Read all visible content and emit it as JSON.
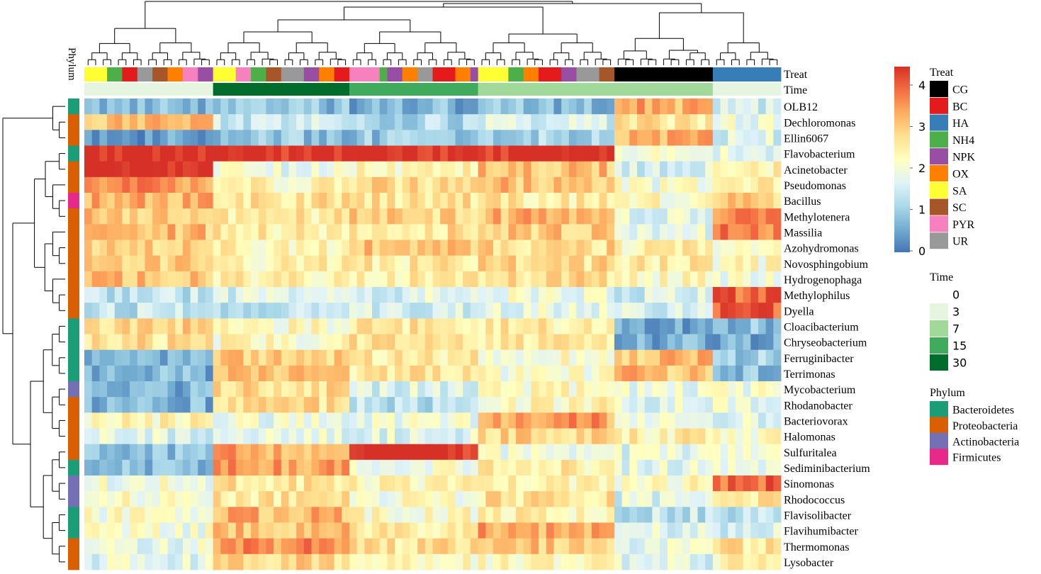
{
  "chart_data": {
    "type": "heatmap",
    "rows": [
      "OLB12",
      "Dechloromonas",
      "Ellin6067",
      "Flavobacterium",
      "Acinetobacter",
      "Pseudomonas",
      "Bacillus",
      "Methylotenera",
      "Massilia",
      "Azohydromonas",
      "Novosphingobium",
      "Hydrogenophaga",
      "Methylophilus",
      "Dyella",
      "Cloacibacterium",
      "Chryseobacterium",
      "Ferruginibacter",
      "Terrimonas",
      "Mycobacterium",
      "Rhodanobacter",
      "Bacteriovorax",
      "Halomonas",
      "Sulfuritalea",
      "Sediminibacterium",
      "Sinomonas",
      "Rhodococcus",
      "Flavisolibacter",
      "Flavihumibacter",
      "Thermomonas",
      "Lysobacter"
    ],
    "row_phylum": [
      "Bacteroidetes",
      "Proteobacteria",
      "Proteobacteria",
      "Bacteroidetes",
      "Proteobacteria",
      "Proteobacteria",
      "Firmicutes",
      "Proteobacteria",
      "Proteobacteria",
      "Proteobacteria",
      "Proteobacteria",
      "Proteobacteria",
      "Proteobacteria",
      "Proteobacteria",
      "Bacteroidetes",
      "Bacteroidetes",
      "Bacteroidetes",
      "Bacteroidetes",
      "Actinobacteria",
      "Proteobacteria",
      "Proteobacteria",
      "Proteobacteria",
      "Proteobacteria",
      "Bacteroidetes",
      "Actinobacteria",
      "Actinobacteria",
      "Bacteroidetes",
      "Bacteroidetes",
      "Proteobacteria",
      "Proteobacteria"
    ],
    "column_groups": [
      {
        "start": 0,
        "end": 17,
        "time": 3,
        "treats": [
          "SA",
          "SA",
          "NH4",
          "NH4",
          "BC",
          "BC",
          "UR",
          "UR",
          "SC",
          "SC",
          "OX",
          "OX",
          "PYR",
          "PYR",
          "NPK",
          "NPK"
        ],
        "base": [
          0.6,
          2.8,
          0.4,
          4.2,
          4.2,
          3.2,
          2.9,
          2.8,
          2.8,
          2.6,
          2.7,
          2.8,
          1.2,
          1.2,
          2.6,
          2.4,
          0.6,
          0.6,
          0.6,
          0.6,
          2.1,
          1.5,
          0.8,
          0.7,
          1.8,
          1.9,
          1.9,
          1.8,
          1.7,
          1.6
        ]
      },
      {
        "start": 17,
        "end": 35,
        "time": 30,
        "treats": [
          "SA",
          "SA",
          "PYR",
          "PYR",
          "NH4",
          "NH4",
          "SC",
          "SC",
          "UR",
          "UR",
          "NPK",
          "NPK",
          "OX",
          "OX",
          "BC",
          "BC"
        ],
        "base": [
          0.7,
          1.3,
          0.8,
          4.1,
          1.7,
          2.1,
          2.4,
          2.3,
          2.3,
          2.2,
          2.2,
          2.2,
          1.5,
          1.3,
          2.0,
          2.0,
          2.7,
          2.8,
          2.5,
          2.5,
          1.7,
          1.6,
          3.0,
          3.1,
          2.4,
          2.4,
          2.9,
          2.8,
          3.2,
          2.6
        ]
      },
      {
        "start": 35,
        "end": 52,
        "time": 15,
        "treats": [
          "PYR",
          "PYR",
          "PYR",
          "NH4",
          "NPK",
          "OX",
          "OX",
          "UR",
          "UR",
          "BC",
          "BC",
          "OX",
          "OX",
          "NPK"
        ],
        "base": [
          0.6,
          1.1,
          0.8,
          4.1,
          2.1,
          2.5,
          2.4,
          2.6,
          2.4,
          2.8,
          2.3,
          2.3,
          1.5,
          1.4,
          2.3,
          2.5,
          2.3,
          2.3,
          1.5,
          1.2,
          1.7,
          1.6,
          4.0,
          1.9,
          2.1,
          1.9,
          2.0,
          2.2,
          2.4,
          2.1
        ]
      },
      {
        "start": 52,
        "end": 70,
        "time": 7,
        "treats": [
          "SA",
          "SA",
          "SA",
          "NH4",
          "OX",
          "OX",
          "BC",
          "BC",
          "NPK",
          "NPK",
          "UR",
          "UR",
          "SC",
          "SC"
        ],
        "base": [
          0.7,
          1.4,
          1.0,
          4.0,
          2.8,
          2.8,
          2.3,
          2.9,
          2.7,
          2.5,
          2.5,
          2.5,
          1.8,
          1.7,
          2.3,
          2.3,
          1.9,
          1.9,
          2.0,
          2.1,
          3.1,
          2.6,
          1.8,
          2.2,
          2.1,
          2.4,
          2.2,
          3.0,
          2.7,
          2.1
        ]
      },
      {
        "start": 70,
        "end": 83,
        "time": 7,
        "treats": [
          "CG",
          "CG",
          "CG",
          "CG",
          "CG",
          "CG",
          "CG",
          "CG",
          "CG",
          "CG",
          "CG",
          "CG",
          "CG"
        ],
        "base": [
          3.0,
          2.4,
          2.9,
          1.9,
          1.4,
          1.8,
          2.0,
          1.6,
          1.6,
          2.2,
          2.3,
          2.1,
          1.4,
          1.4,
          0.4,
          0.5,
          2.8,
          2.8,
          1.7,
          1.6,
          1.6,
          2.2,
          1.6,
          1.6,
          2.0,
          1.5,
          1.2,
          1.5,
          1.6,
          1.5
        ]
      },
      {
        "start": 83,
        "end": 92,
        "time": 3,
        "treats": [
          "HA",
          "HA",
          "HA",
          "HA",
          "HA",
          "HA",
          "HA",
          "HA",
          "HA"
        ],
        "base": [
          1.3,
          1.7,
          1.5,
          1.7,
          2.1,
          2.4,
          2.6,
          3.2,
          3.4,
          1.9,
          2.0,
          1.8,
          3.5,
          3.6,
          0.7,
          0.5,
          0.9,
          0.7,
          1.8,
          1.7,
          1.6,
          1.9,
          1.7,
          1.6,
          3.5,
          2.3,
          1.2,
          1.4,
          2.4,
          2.1
        ]
      }
    ],
    "color_scale": {
      "min": 0,
      "max": 4,
      "ticks": [
        0,
        1,
        2,
        3,
        4
      ],
      "colors": [
        "#4575b4",
        "#74add1",
        "#abd9e9",
        "#e0f3f8",
        "#ffffbf",
        "#fee090",
        "#fdae61",
        "#f46d43",
        "#d73027"
      ]
    },
    "legend_treat": {
      "title": "Treat",
      "items": [
        {
          "label": "CG",
          "color": "#000000"
        },
        {
          "label": "BC",
          "color": "#e41a1c"
        },
        {
          "label": "HA",
          "color": "#377eb8"
        },
        {
          "label": "NH4",
          "color": "#4daf4a"
        },
        {
          "label": "NPK",
          "color": "#984ea3"
        },
        {
          "label": "OX",
          "color": "#ff7f00"
        },
        {
          "label": "SA",
          "color": "#ffff33"
        },
        {
          "label": "SC",
          "color": "#a65628"
        },
        {
          "label": "PYR",
          "color": "#f781bf"
        },
        {
          "label": "UR",
          "color": "#999999"
        }
      ]
    },
    "legend_time": {
      "title": "Time",
      "items": [
        {
          "label": "0",
          "color": "#ffffff"
        },
        {
          "label": "3",
          "color": "#e5f5e0"
        },
        {
          "label": "7",
          "color": "#a1d99b"
        },
        {
          "label": "15",
          "color": "#41ab5d"
        },
        {
          "label": "30",
          "color": "#006d2c"
        }
      ]
    },
    "legend_phylum": {
      "title": "Phylum",
      "items": [
        {
          "label": "Bacteroidetes",
          "color": "#1b9e77"
        },
        {
          "label": "Proteobacteria",
          "color": "#d95f02"
        },
        {
          "label": "Actinobacteria",
          "color": "#7570b3"
        },
        {
          "label": "Firmicutes",
          "color": "#e7298a"
        }
      ]
    },
    "annotation_labels": {
      "treat": "Treat",
      "time": "Time",
      "phylum": "Phylum"
    }
  }
}
